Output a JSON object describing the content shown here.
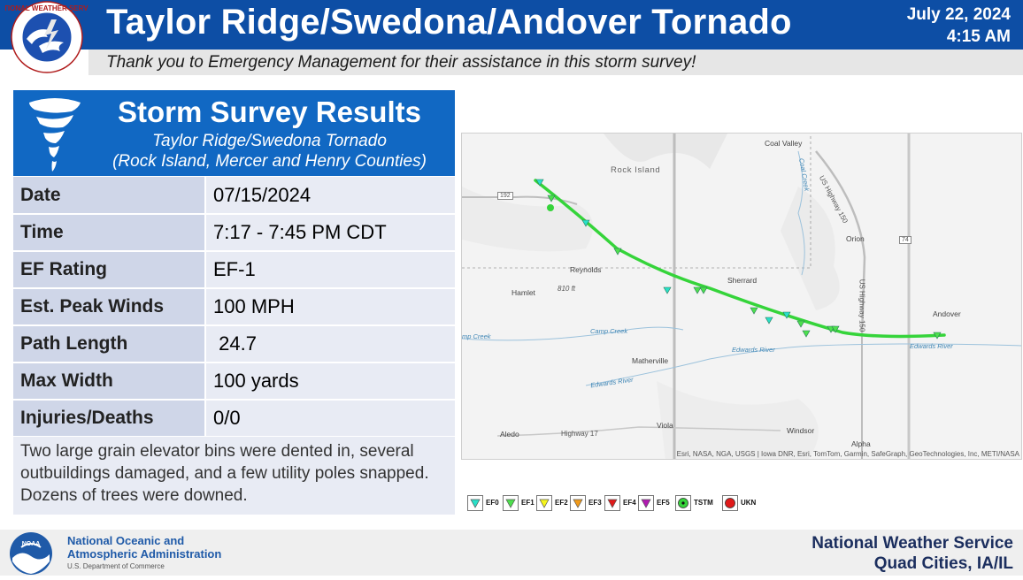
{
  "header": {
    "title": "Taylor Ridge/Swedona/Andover Tornado",
    "date": "July 22, 2024",
    "time": "4:15 AM",
    "logo_text": "NATIONAL WEATHER SERVICE",
    "logo_icon": "nws-logo-icon"
  },
  "thanks": "Thank you to Emergency Management for their assistance in this storm survey!",
  "survey": {
    "heading": "Storm Survey Results",
    "subtitle1": "Taylor Ridge/Swedona Tornado",
    "subtitle2": "(Rock Island, Mercer and Henry Counties)",
    "icon": "tornado-icon",
    "rows": [
      {
        "label": "Date",
        "value": "07/15/2024"
      },
      {
        "label": "Time",
        "value": "7:17 - 7:45 PM CDT"
      },
      {
        "label": "EF Rating",
        "value": "EF-1"
      },
      {
        "label": "Est. Peak Winds",
        "value": "100 MPH"
      },
      {
        "label": "Path Length",
        "value": " 24.7"
      },
      {
        "label": "Max Width",
        "value": "100 yards"
      },
      {
        "label": "Injuries/Deaths",
        "value": "0/0"
      }
    ],
    "description": "Two large grain elevator bins were dented in, several outbuildings damaged, and a few utility poles snapped. Dozens of trees were downed."
  },
  "map": {
    "labels": {
      "rock_island": "Rock Island",
      "coal_valley": "Coal Valley",
      "orion": "Orion",
      "reynolds": "Reynolds",
      "hamlet": "Hamlet",
      "elev": "810 ft",
      "sherrard": "Sherrard",
      "andover": "Andover",
      "matherville": "Matherville",
      "aledo": "Aledo",
      "viola": "Viola",
      "windsor": "Windsor",
      "alpha": "Alpha",
      "camp_creek": "Camp Creek",
      "camp_creek_w": "mp Creek",
      "edwards_river": "Edwards River",
      "edwards_river_e": "Edwards River",
      "edwards_river_w": "Edwards River",
      "coal_creek": "Coal Creek",
      "us150": "US Highway 150",
      "us150s": "US Highway 150",
      "highway17": "Highway 17",
      "route192": "192",
      "route74": "74"
    },
    "attribution": "Esri, NASA, NGA, USGS | Iowa DNR, Esri, TomTom, Garmin, SafeGraph, GeoTechnologies, Inc, METI/NASA",
    "track_color": "#35d43a"
  },
  "legend": [
    {
      "label": "EF0",
      "color": "#29e0c8",
      "icon": "ef0-triangle-icon"
    },
    {
      "label": "EF1",
      "color": "#4de04d",
      "icon": "ef1-triangle-icon"
    },
    {
      "label": "EF2",
      "color": "#f5f51a",
      "icon": "ef2-triangle-icon"
    },
    {
      "label": "EF3",
      "color": "#f09a1a",
      "icon": "ef3-triangle-icon"
    },
    {
      "label": "EF4",
      "color": "#e01a1a",
      "icon": "ef4-triangle-icon"
    },
    {
      "label": "EF5",
      "color": "#b01ab0",
      "icon": "ef5-triangle-icon"
    },
    {
      "label": "TSTM",
      "color": "#35d43a",
      "icon": "tstm-circle-icon"
    },
    {
      "label": "UKN",
      "color": "#e01a1a",
      "icon": "ukn-circle-icon"
    }
  ],
  "footer": {
    "noaa_line1": "National Oceanic and",
    "noaa_line2": "Atmospheric Administration",
    "noaa_dept": "U.S. Department of Commerce",
    "nws_line1": "National Weather Service",
    "nws_line2": "Quad Cities, IA/IL"
  }
}
